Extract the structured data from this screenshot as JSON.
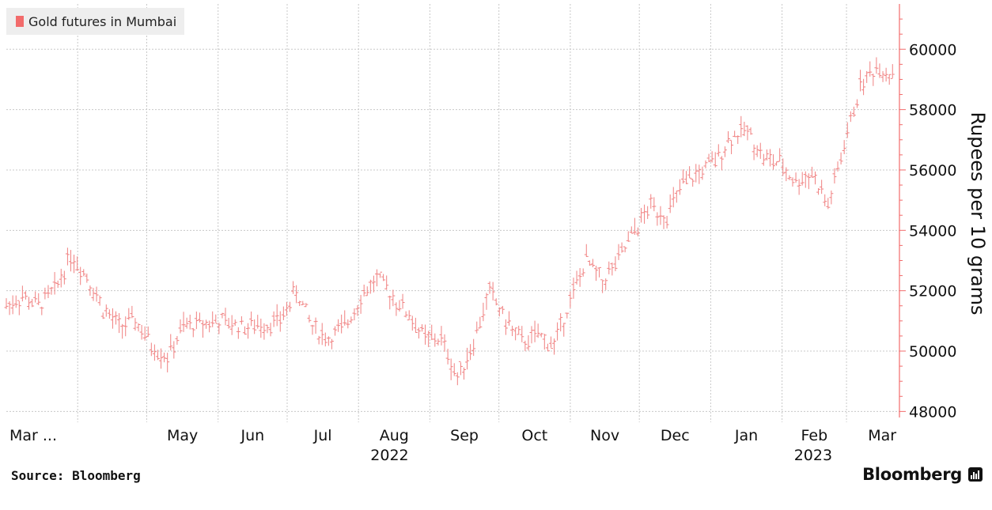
{
  "legend": {
    "label": "Gold futures in Mumbai",
    "color": "#f26b6b"
  },
  "footer": {
    "source": "Source: Bloomberg",
    "brand": "Bloomberg"
  },
  "colors": {
    "series": "#f08080",
    "axis": "#f26b6b",
    "grid": "#c8c8c8"
  },
  "chart_data": {
    "type": "line",
    "ylabel": "Rupees per 10 grams",
    "ylim": [
      47800,
      61500
    ],
    "yticks": [
      48000,
      50000,
      52000,
      54000,
      56000,
      58000,
      60000
    ],
    "y_axis_position": "right",
    "grid": true,
    "legend_position": "top-left",
    "xlim": [
      "2022-03-01",
      "2023-03-24"
    ],
    "month_labels": [
      {
        "label": "Mar ...",
        "date": "2022-03-09"
      },
      {
        "label": "May",
        "date": "2022-05-01"
      },
      {
        "label": "Jun",
        "date": "2022-06-01"
      },
      {
        "label": "Jul",
        "date": "2022-07-01"
      },
      {
        "label": "Aug",
        "date": "2022-08-01"
      },
      {
        "label": "Sep",
        "date": "2022-09-01"
      },
      {
        "label": "Oct",
        "date": "2022-10-01"
      },
      {
        "label": "Nov",
        "date": "2022-11-01"
      },
      {
        "label": "Dec",
        "date": "2022-12-01"
      },
      {
        "label": "Jan",
        "date": "2023-01-01"
      },
      {
        "label": "Feb",
        "date": "2023-02-01"
      },
      {
        "label": "Mar",
        "date": "2023-03-01"
      }
    ],
    "year_labels": [
      {
        "label": "2022",
        "date": "2022-08-01"
      },
      {
        "label": "2023",
        "date": "2023-02-01"
      }
    ],
    "series": [
      {
        "name": "Gold futures in Mumbai",
        "x": [
          "2022-03-01",
          "2022-03-08",
          "2022-03-15",
          "2022-03-22",
          "2022-03-29",
          "2022-04-05",
          "2022-04-12",
          "2022-04-19",
          "2022-04-26",
          "2022-05-03",
          "2022-05-10",
          "2022-05-17",
          "2022-05-24",
          "2022-05-31",
          "2022-06-07",
          "2022-06-14",
          "2022-06-21",
          "2022-06-28",
          "2022-07-05",
          "2022-07-12",
          "2022-07-19",
          "2022-07-26",
          "2022-08-02",
          "2022-08-09",
          "2022-08-16",
          "2022-08-23",
          "2022-08-30",
          "2022-09-06",
          "2022-09-13",
          "2022-09-20",
          "2022-09-27",
          "2022-10-04",
          "2022-10-11",
          "2022-10-18",
          "2022-10-25",
          "2022-11-01",
          "2022-11-08",
          "2022-11-15",
          "2022-11-22",
          "2022-11-29",
          "2022-12-06",
          "2022-12-13",
          "2022-12-20",
          "2022-12-27",
          "2023-01-03",
          "2023-01-10",
          "2023-01-17",
          "2023-01-24",
          "2023-01-31",
          "2023-02-07",
          "2023-02-14",
          "2023-02-21",
          "2023-02-28",
          "2023-03-07",
          "2023-03-14",
          "2023-03-21"
        ],
        "y": [
          51500,
          51800,
          51500,
          52000,
          53200,
          52500,
          51400,
          50800,
          51000,
          50200,
          49800,
          50800,
          50900,
          51000,
          50900,
          50800,
          50900,
          51000,
          52000,
          50800,
          50400,
          50800,
          51800,
          52400,
          51800,
          51200,
          50400,
          50400,
          49100,
          50300,
          52000,
          51000,
          50300,
          50500,
          50200,
          51700,
          53000,
          52300,
          53000,
          54000,
          54800,
          54500,
          55500,
          55900,
          56300,
          57100,
          57300,
          56400,
          56200,
          55600,
          55900,
          54800,
          56800,
          58800,
          59400,
          59200
        ]
      }
    ]
  }
}
